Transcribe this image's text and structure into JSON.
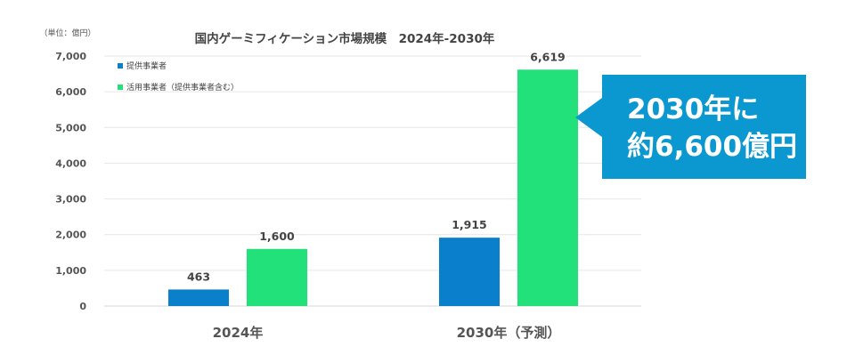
{
  "chart_data": {
    "type": "bar",
    "title": "国内ゲーミフィケーション市場規模　2024年-2030年",
    "unit_label": "（単位：億円）",
    "categories": [
      "2024年",
      "2030年（予測）"
    ],
    "series": [
      {
        "name": "提供事業者",
        "color": "#0a7fcc",
        "values": [
          463,
          1915
        ],
        "labels": [
          "463",
          "1,915"
        ]
      },
      {
        "name": "活用事業者（提供事業者含む）",
        "color": "#22e07a",
        "values": [
          1600,
          6619
        ],
        "labels": [
          "1,600",
          "6,619"
        ]
      }
    ],
    "ylim": [
      0,
      7000
    ],
    "yticks": [
      0,
      1000,
      2000,
      3000,
      4000,
      5000,
      6000,
      7000
    ],
    "ytick_labels": [
      "0",
      "1,000",
      "2,000",
      "3,000",
      "4,000",
      "5,000",
      "6,000",
      "7,000"
    ],
    "grid": true,
    "legend_position": "top-left"
  },
  "callout": {
    "line1": "2030年に",
    "line2": "約6,600億円",
    "color": "#0b98d0"
  }
}
